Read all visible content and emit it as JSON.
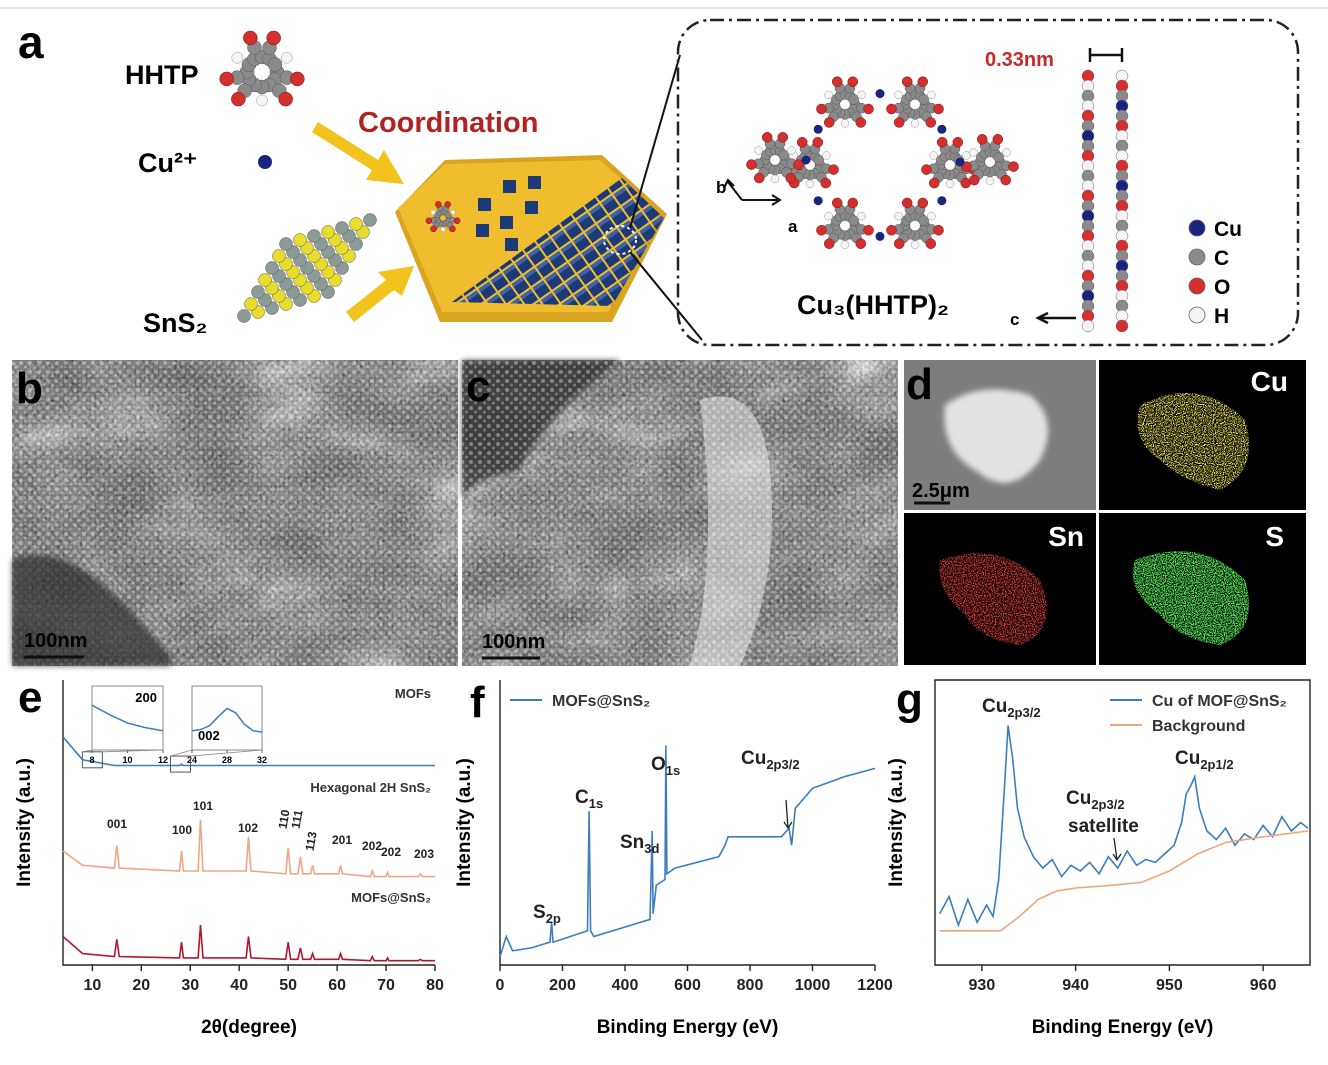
{
  "panels": {
    "a": {
      "letter": "a",
      "hhtp": "HHTP",
      "cu_ion": "Cu²⁺",
      "sns2": "SnS₂",
      "coordination": "Coordination",
      "spacing": "0.33nm",
      "axis_b": "b",
      "axis_a": "a",
      "axis_c": "c",
      "framework": "Cu₃(HHTP)₂",
      "legend": [
        "Cu",
        "C",
        "O",
        "H"
      ]
    },
    "b": {
      "letter": "b",
      "scale": "100nm"
    },
    "c": {
      "letter": "c",
      "scale": "100nm"
    },
    "d": {
      "letter": "d",
      "scale": "2.5μm",
      "maps": [
        "Cu",
        "Sn",
        "S"
      ]
    }
  },
  "chart_data": [
    {
      "type": "line",
      "letter": "e",
      "xlabel": "2θ(degree)",
      "ylabel": "Intensity (a.u.)",
      "xlim": [
        4,
        80
      ],
      "xticks": [
        10,
        20,
        30,
        40,
        50,
        60,
        70,
        80
      ],
      "ylim": [
        0,
        100
      ],
      "x": [
        4,
        8,
        14.5,
        15,
        15.5,
        27.8,
        28.2,
        28.6,
        31.6,
        32.1,
        32.6,
        41.4,
        41.9,
        42.4,
        49.5,
        50,
        50.5,
        52,
        52.5,
        53,
        54.6,
        55,
        55.4,
        60.3,
        60.7,
        61.1,
        66.8,
        67.2,
        67.6,
        70,
        70.3,
        70.6,
        76.6,
        77,
        77.4,
        80
      ],
      "series": [
        {
          "name": "MOFs",
          "color": "#3b7ebf",
          "values": [
            80,
            72,
            70,
            70,
            70,
            70,
            70.5,
            70,
            70,
            70,
            70,
            70,
            70,
            70,
            70,
            70,
            70,
            70,
            70,
            70,
            70,
            70,
            70,
            70,
            70,
            70,
            70,
            70,
            70,
            70,
            70,
            70,
            70,
            70,
            70,
            70
          ]
        },
        {
          "name": "Hexagonal 2H SnS₂",
          "color": "#f4a582",
          "values": [
            40,
            35,
            34,
            42,
            34,
            33,
            40,
            33,
            33,
            51,
            33,
            33,
            45,
            33,
            32,
            41,
            32,
            32,
            38,
            32,
            32,
            35,
            32,
            32,
            35,
            32,
            31,
            33,
            31,
            31,
            32.5,
            31,
            31,
            32,
            31,
            31
          ]
        },
        {
          "name": "MOFs@SnS₂",
          "color": "#b2182b",
          "values": [
            10,
            4,
            3,
            9,
            3,
            2.5,
            8,
            2.5,
            2.5,
            14,
            2.5,
            2.5,
            10,
            2.5,
            2,
            8,
            2,
            2,
            6,
            2,
            2,
            4,
            2,
            2,
            4,
            2,
            1.5,
            3,
            1.5,
            1.5,
            2.5,
            1.5,
            1.5,
            2,
            1.5,
            1.5
          ]
        }
      ],
      "annotations": [
        {
          "text": "001"
        },
        {
          "text": "100"
        },
        {
          "text": "101"
        },
        {
          "text": "102"
        },
        {
          "text": "110"
        },
        {
          "text": "111"
        },
        {
          "text": "113"
        },
        {
          "text": "201"
        },
        {
          "text": "202"
        },
        {
          "text": "202"
        },
        {
          "text": "203"
        }
      ],
      "insets": [
        {
          "label": "200",
          "xlim": [
            8,
            12
          ],
          "xticks": [
            8,
            10,
            12
          ],
          "ylim": [
            0,
            100
          ],
          "x": [
            8,
            9,
            10,
            11,
            12
          ],
          "values": [
            70,
            55,
            42,
            35,
            30
          ]
        },
        {
          "label": "002",
          "xlim": [
            24,
            32
          ],
          "xticks": [
            24,
            28,
            32
          ],
          "ylim": [
            0,
            100
          ],
          "x": [
            24,
            25,
            26,
            27,
            28,
            29,
            30,
            31,
            32
          ],
          "values": [
            30,
            32,
            38,
            52,
            65,
            58,
            40,
            30,
            28
          ]
        }
      ]
    },
    {
      "type": "line",
      "letter": "f",
      "xlabel": "Binding Energy (eV)",
      "ylabel": "Intensity (a.u.)",
      "xlim": [
        0,
        1200
      ],
      "xticks": [
        0,
        200,
        400,
        600,
        800,
        1000,
        1200
      ],
      "ylim": [
        0,
        100
      ],
      "legend": "upper left",
      "x": [
        0,
        20,
        40,
        100,
        160,
        165,
        170,
        280,
        285,
        290,
        300,
        480,
        487,
        490,
        500,
        528,
        531,
        534,
        560,
        700,
        720,
        730,
        900,
        925,
        933,
        945,
        1000,
        1050,
        1100,
        1200
      ],
      "series": [
        {
          "name": "MOFs@SnS₂",
          "color": "#3b7ebf",
          "values": [
            3,
            10,
            5,
            6,
            8,
            15,
            8,
            12,
            54,
            12,
            10,
            16,
            47,
            18,
            28,
            30,
            77,
            32,
            34,
            38,
            42,
            45,
            45,
            48,
            42,
            55,
            62,
            64,
            66,
            69
          ]
        }
      ],
      "annotations": [
        {
          "text": "S",
          "sub": "2p"
        },
        {
          "text": "C",
          "sub": "1s"
        },
        {
          "text": "Sn",
          "sub": "3d"
        },
        {
          "text": "O",
          "sub": "1s"
        },
        {
          "text": "Cu",
          "sub": "2p3/2"
        }
      ]
    },
    {
      "type": "line",
      "letter": "g",
      "xlabel": "Binding Energy (eV)",
      "ylabel": "Intensity (a.u.)",
      "frame": "box",
      "xlim": [
        925,
        965
      ],
      "xticks": [
        930,
        940,
        950,
        960
      ],
      "ylim": [
        0,
        100
      ],
      "legend": "upper right",
      "series": [
        {
          "name": "Cu of MOF@SnS₂",
          "color": "#3b7ebf",
          "x": [
            925.5,
            926.5,
            927.5,
            928.5,
            929.5,
            930.5,
            931.2,
            931.8,
            932.4,
            932.8,
            933.3,
            933.8,
            934.5,
            935.5,
            936.5,
            937.5,
            938.5,
            939.5,
            940.5,
            941.5,
            942.5,
            943.5,
            944.5,
            945.5,
            946.5,
            947.5,
            948.5,
            949.5,
            950.5,
            951.3,
            951.8,
            952.3,
            952.7,
            953.2,
            954,
            955,
            956,
            957,
            958,
            959,
            960,
            961,
            962,
            963,
            964,
            964.8
          ],
          "values": [
            18,
            24,
            14,
            23,
            15,
            21,
            17,
            30,
            62,
            84,
            72,
            55,
            45,
            38,
            34,
            37,
            31,
            35,
            33,
            36,
            32,
            38,
            34,
            40,
            35,
            37,
            36,
            39,
            42,
            50,
            60,
            63,
            66,
            55,
            47,
            44,
            48,
            42,
            46,
            44,
            49,
            45,
            52,
            47,
            50,
            48
          ]
        },
        {
          "name": "Background",
          "color": "#f0a57a",
          "x": [
            925.5,
            930,
            932,
            934,
            936,
            938,
            940,
            944,
            947,
            950,
            953,
            956,
            960,
            964.8
          ],
          "values": [
            12,
            12,
            12,
            17,
            23,
            26,
            27,
            28,
            29,
            33,
            39,
            43,
            45,
            47
          ]
        }
      ],
      "annotations": [
        {
          "text": "Cu",
          "sub": "2p3/2"
        },
        {
          "text": "Cu",
          "sub": "2p3/2"
        },
        {
          "text": "satellite"
        },
        {
          "text": "Cu",
          "sub": "2p1/2"
        }
      ]
    }
  ]
}
